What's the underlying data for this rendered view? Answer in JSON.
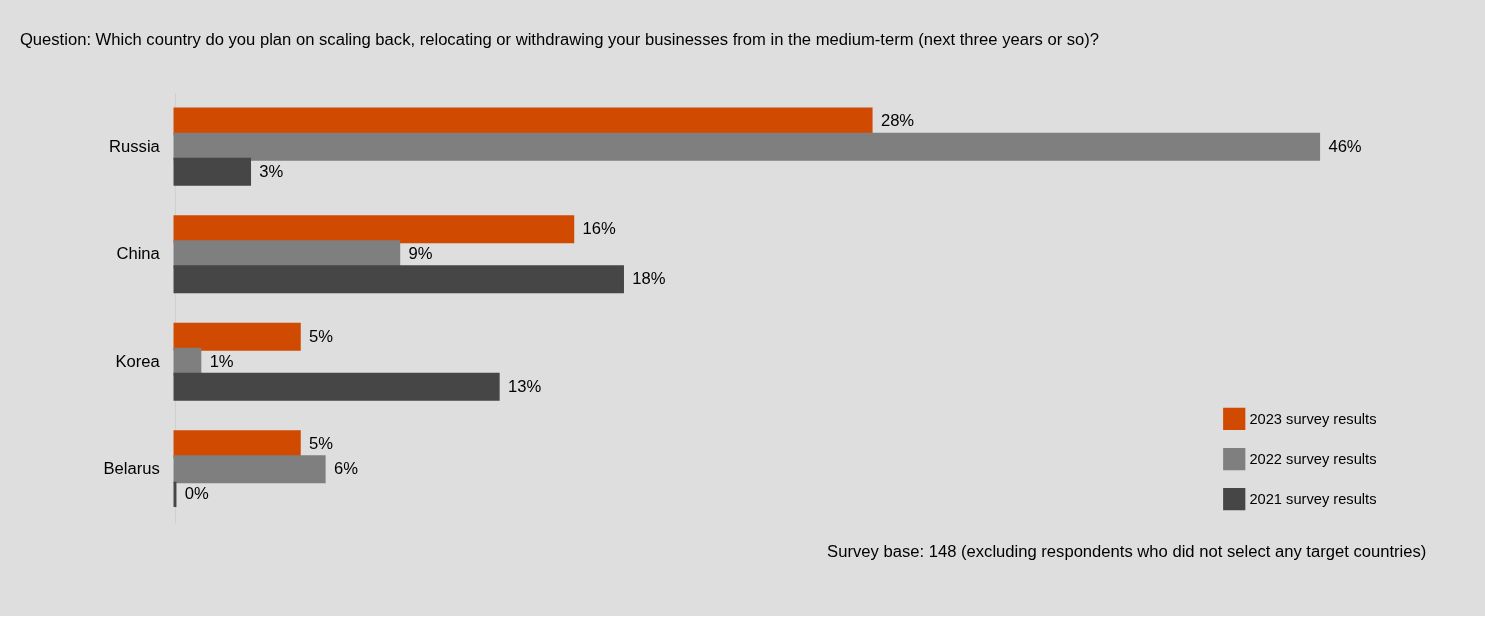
{
  "chart_data": {
    "type": "bar",
    "orientation": "horizontal",
    "title": "Question: Which country do you plan on scaling back, relocating or withdrawing your businesses from in the medium-term (next three years or so)?",
    "categories": [
      "Russia",
      "China",
      "Korea",
      "Belarus"
    ],
    "series": [
      {
        "name": "2023 survey results",
        "color": "#d04a02",
        "values": [
          28,
          16,
          5,
          5
        ],
        "value_labels": [
          "28%",
          "16%",
          "5%",
          "5%"
        ]
      },
      {
        "name": "2022 survey results",
        "color": "#7f7f7f",
        "values": [
          46,
          9,
          1,
          6
        ],
        "value_labels": [
          "46%",
          "9%",
          "1%",
          "6%"
        ]
      },
      {
        "name": "2021 survey results",
        "color": "#464646",
        "values": [
          3,
          18,
          13,
          0
        ],
        "value_labels": [
          "3%",
          "18%",
          "13%",
          "0%"
        ]
      }
    ],
    "legend": "bottom right",
    "annotations": [
      "Survey base: 148 (excluding respondents who did not select any target countries)"
    ]
  }
}
